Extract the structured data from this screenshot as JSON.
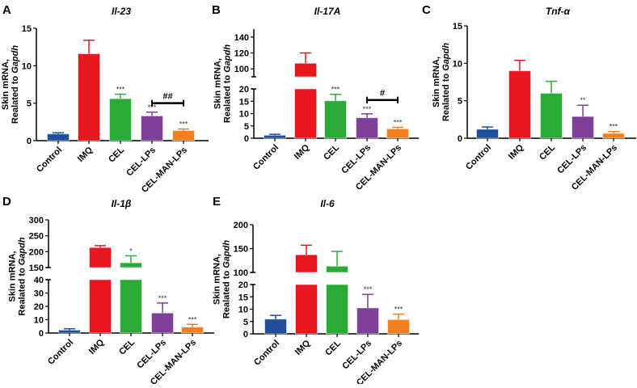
{
  "colors": {
    "Control": "#1f4e9c",
    "IMQ": "#e8171f",
    "CEL": "#2aab38",
    "CEL-LPs": "#7d3f98",
    "CEL-MAN-LPs": "#f47f20"
  },
  "chart_data": [
    {
      "id": "A",
      "type": "bar",
      "title": "Il-23",
      "ylabel": [
        "Skin mRNA,",
        "Realated to ",
        "Gapdh"
      ],
      "categories": [
        "Control",
        "IMQ",
        "CEL",
        "CEL-LPs",
        "CEL-MAN-LPs"
      ],
      "values": [
        0.9,
        11.6,
        5.6,
        3.3,
        1.35
      ],
      "error_upper": [
        1.05,
        13.4,
        6.2,
        3.8,
        1.55
      ],
      "significance": [
        "",
        "",
        "***",
        "***",
        "***"
      ],
      "segments": [
        {
          "range": [
            0,
            15
          ],
          "ticks": [
            0,
            5,
            10,
            15
          ]
        }
      ],
      "bracket": {
        "from": 3,
        "to": 4,
        "value": 5.0,
        "label": "##"
      }
    },
    {
      "id": "B",
      "type": "bar",
      "title": "Il-17A",
      "ylabel": [
        "Skin mRNA,",
        "Realated to ",
        "Gapdh"
      ],
      "categories": [
        "Control",
        "IMQ",
        "CEL",
        "CEL-LPs",
        "CEL-MAN-LPs"
      ],
      "values": [
        1.2,
        107,
        15.2,
        8.3,
        3.8
      ],
      "error_upper": [
        1.6,
        120,
        17.8,
        9.9,
        4.4
      ],
      "significance": [
        "",
        "",
        "***",
        "***",
        "***"
      ],
      "segments": [
        {
          "range": [
            0,
            20
          ],
          "ticks": [
            0,
            5,
            10,
            15,
            20
          ]
        },
        {
          "range": [
            90,
            150
          ],
          "ticks": [
            100,
            120,
            140
          ]
        }
      ],
      "bracket": {
        "from": 3,
        "to": 4,
        "value": 15.5,
        "label": "#"
      }
    },
    {
      "id": "C",
      "type": "bar",
      "title": "Tnf-α",
      "ylabel": [
        "Skin mRNA,",
        "Realated to ",
        "Gapdh"
      ],
      "categories": [
        "Control",
        "IMQ",
        "CEL",
        "CEL-LPs",
        "CEL-MAN-LPs"
      ],
      "values": [
        1.2,
        9.0,
        6.0,
        2.9,
        0.65
      ],
      "error_upper": [
        1.5,
        10.4,
        7.6,
        4.4,
        0.9
      ],
      "significance": [
        "",
        "",
        "",
        "**",
        "***"
      ],
      "segments": [
        {
          "range": [
            0,
            15
          ],
          "ticks": [
            0,
            5,
            10,
            15
          ]
        }
      ]
    },
    {
      "id": "D",
      "type": "bar",
      "title": "Il-1β",
      "ylabel": [
        "Skin mRNA,",
        "Realated to ",
        "Gapdh"
      ],
      "categories": [
        "Control",
        "IMQ",
        "CEL",
        "CEL-LPs",
        "CEL-MAN-LPs"
      ],
      "values": [
        2.2,
        213,
        165,
        15,
        4.5
      ],
      "error_upper": [
        3.2,
        219,
        187,
        22.5,
        6.5
      ],
      "significance": [
        "",
        "",
        "*",
        "***",
        "***"
      ],
      "segments": [
        {
          "range": [
            0,
            40
          ],
          "ticks": [
            0,
            10,
            20,
            30,
            40
          ]
        },
        {
          "range": [
            150,
            300
          ],
          "ticks": [
            150,
            200,
            250,
            300
          ]
        }
      ]
    },
    {
      "id": "E",
      "type": "bar",
      "title": "Il-6",
      "ylabel": [
        "Skin mRNA,",
        "Realated to ",
        "Gapdh"
      ],
      "categories": [
        "Control",
        "IMQ",
        "CEL",
        "CEL-LPs",
        "CEL-MAN-LPs"
      ],
      "values": [
        6,
        137,
        113,
        10.5,
        5.8
      ],
      "error_upper": [
        7.5,
        157,
        144,
        16,
        8
      ],
      "significance": [
        "",
        "",
        "",
        "***",
        "***"
      ],
      "segments": [
        {
          "range": [
            0,
            20
          ],
          "ticks": [
            0,
            5,
            10,
            15,
            20
          ]
        },
        {
          "range": [
            100,
            200
          ],
          "ticks": [
            100,
            150,
            200
          ]
        }
      ]
    }
  ]
}
